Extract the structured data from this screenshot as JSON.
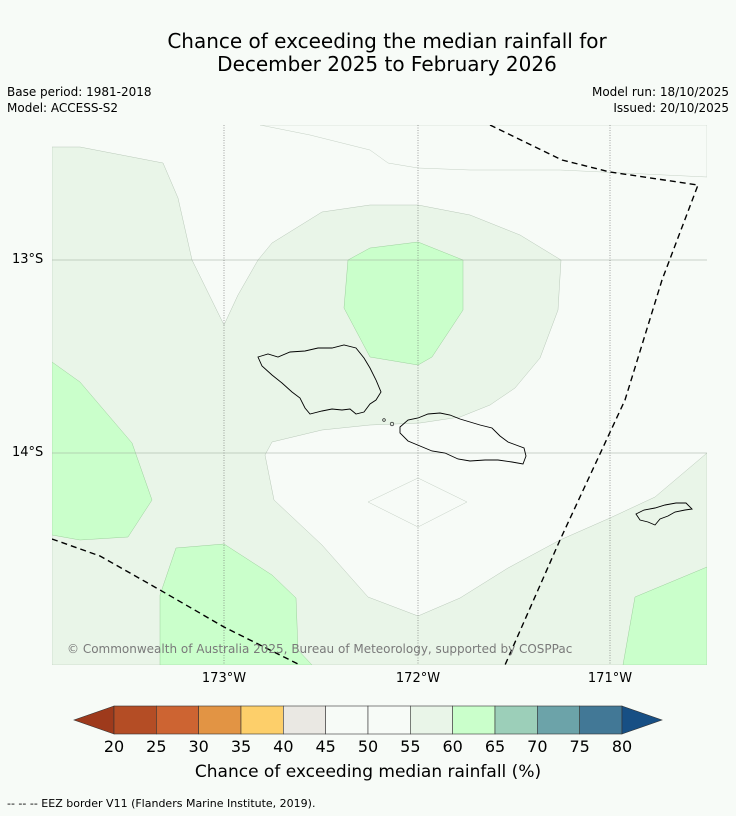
{
  "title": {
    "line1": "Chance of exceeding the median rainfall for",
    "line2": "December 2025 to February 2026"
  },
  "meta": {
    "base_period": "Base period: 1981-2018",
    "model": "Model: ACCESS-S2",
    "model_run": "Model run: 18/10/2025",
    "issued": "Issued: 20/10/2025"
  },
  "axes": {
    "lat_labels": [
      "13°S",
      "14°S"
    ],
    "lon_labels": [
      "173°W",
      "172°W",
      "171°W"
    ]
  },
  "copyright": "© Commonwealth of Australia 2025, Bureau of Meteorology, supported by COSPPac",
  "colorbar": {
    "label": "Chance of exceeding median rainfall (%)",
    "ticks": [
      "20",
      "25",
      "30",
      "35",
      "40",
      "45",
      "50",
      "55",
      "60",
      "65",
      "70",
      "75",
      "80"
    ],
    "colors": [
      "#9e3a1c",
      "#b44d25",
      "#cd6432",
      "#e29444",
      "#fdcf6a",
      "#eae8e3",
      "#f7fbf7",
      "#f7fbf7",
      "#e9f5e8",
      "#caffcb",
      "#9ccfb9",
      "#6ca3a9",
      "#427896",
      "#174f84"
    ]
  },
  "map_colors": {
    "band_55_60": "#e9f5e8",
    "band_60_65": "#caffcb",
    "background": "#f7fbf7"
  },
  "footer": "--  --  -- EEZ border V11 (Flanders Marine Institute, 2019)."
}
